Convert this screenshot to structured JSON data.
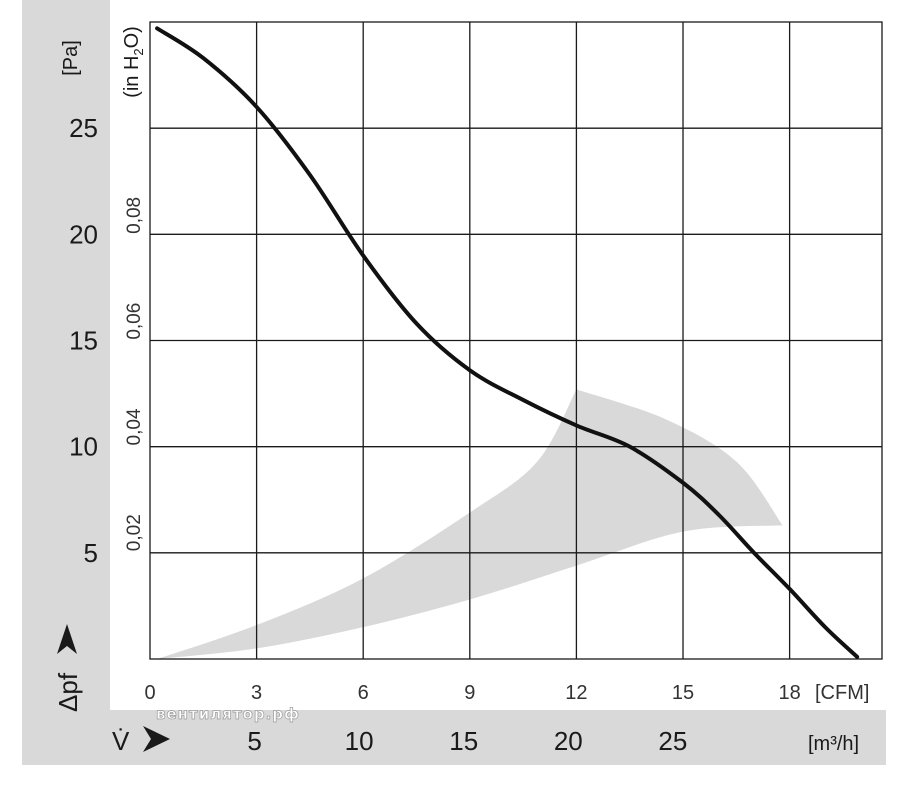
{
  "colors": {
    "band_background": "#d9d9d9",
    "operating_area": "#d9d9d9",
    "grid": "#1a1a1a",
    "curve": "#111111"
  },
  "axis_units": {
    "pa": "[Pa]",
    "inh2o": "(in H",
    "inh2o_sub": "2",
    "inh2o_end": "O)",
    "cfm": "[CFM]",
    "m3h": "[m³/h]"
  },
  "axis_symbols": {
    "pressure": "Δpf",
    "flow": "V̇"
  },
  "watermark": "вентилятор.рф",
  "chart_data": {
    "type": "line",
    "x_axis_primary": {
      "unit": "CFM",
      "range": [
        0,
        20.6
      ],
      "ticks": [
        "0",
        "3",
        "6",
        "9",
        "12",
        "15",
        "18"
      ],
      "tick_values": [
        0,
        3,
        6,
        9,
        12,
        15,
        18
      ]
    },
    "x_axis_secondary": {
      "unit": "m³/h",
      "ticks": [
        "5",
        "10",
        "15",
        "20",
        "25"
      ],
      "tick_values": [
        5,
        10,
        15,
        20,
        25
      ]
    },
    "y_axis_primary": {
      "unit": "Pa",
      "range": [
        0,
        30
      ],
      "ticks": [
        "5",
        "10",
        "15",
        "20",
        "25"
      ],
      "tick_values": [
        5,
        10,
        15,
        20,
        25
      ]
    },
    "y_axis_secondary": {
      "unit": "in H2O",
      "ticks": [
        "0,02",
        "0,04",
        "0,06",
        "0,08"
      ],
      "tick_values": [
        0.02,
        0.04,
        0.06,
        0.08
      ]
    },
    "grid": true,
    "series": [
      {
        "x_cfm": [
          0.2,
          1.5,
          3.0,
          4.5,
          6.0,
          7.5,
          9.0,
          10.5,
          12.0,
          13.5,
          15.0,
          16.0,
          17.0,
          18.0,
          19.0,
          19.9
        ],
        "y_pa": [
          29.7,
          28.3,
          26.0,
          22.8,
          19.0,
          15.8,
          13.6,
          12.2,
          11.0,
          10.0,
          8.3,
          6.8,
          5.0,
          3.3,
          1.5,
          0.1
        ]
      }
    ],
    "operating_area": {
      "lower_x_cfm": [
        0.2,
        3,
        6,
        9,
        12,
        15,
        17.8
      ],
      "lower_y_pa": [
        0,
        0.5,
        1.5,
        2.8,
        4.4,
        6.0,
        6.3
      ],
      "upper_x_cfm": [
        0.2,
        3,
        6,
        9,
        10.9,
        12.0
      ],
      "upper_y_pa": [
        0,
        1.6,
        3.8,
        6.9,
        9.3,
        12.7
      ],
      "right_edge_x_cfm": [
        12.0,
        14.5,
        16.5,
        17.8
      ],
      "right_edge_y_pa": [
        12.7,
        11.3,
        9.3,
        6.3
      ]
    }
  }
}
